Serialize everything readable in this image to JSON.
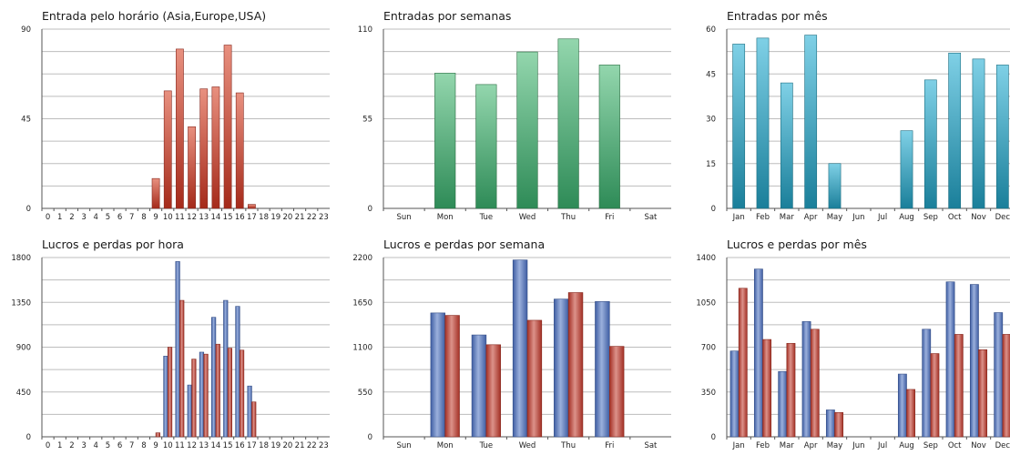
{
  "chart_data": [
    {
      "type": "bar",
      "title": "Entrada pelo horário (Asia,Europe,USA)",
      "categories": [
        "0",
        "1",
        "2",
        "3",
        "4",
        "5",
        "6",
        "7",
        "8",
        "9",
        "10",
        "11",
        "12",
        "13",
        "14",
        "15",
        "16",
        "17",
        "18",
        "19",
        "20",
        "21",
        "22",
        "23"
      ],
      "series": [
        {
          "color": "#c0392b",
          "values": [
            0,
            0,
            0,
            0,
            0,
            0,
            0,
            0,
            0,
            15,
            59,
            80,
            41,
            60,
            61,
            82,
            58,
            2,
            0,
            0,
            0,
            0,
            0,
            0
          ]
        }
      ],
      "ylim": [
        0,
        90
      ],
      "yticks": [
        "0",
        "45",
        "90"
      ],
      "grid": true,
      "gradient": [
        "#e8907f",
        "#a52a1a"
      ]
    },
    {
      "type": "bar",
      "title": "Entradas por semanas",
      "categories": [
        "Sun",
        "Mon",
        "Tue",
        "Wed",
        "Thu",
        "Fri",
        "Sat"
      ],
      "series": [
        {
          "color": "#3a9a5c",
          "values": [
            0,
            83,
            76,
            96,
            104,
            88,
            0
          ]
        }
      ],
      "ylim": [
        0,
        110
      ],
      "yticks": [
        "0",
        "55",
        "110"
      ],
      "grid": true,
      "gradient": [
        "#93d6ad",
        "#2e8b57"
      ]
    },
    {
      "type": "bar",
      "title": "Entradas por mês",
      "categories": [
        "Jan",
        "Feb",
        "Mar",
        "Apr",
        "May",
        "Jun",
        "Jul",
        "Aug",
        "Sep",
        "Oct",
        "Nov",
        "Dec"
      ],
      "series": [
        {
          "color": "#2a9db8",
          "values": [
            55,
            57,
            42,
            58,
            15,
            0,
            0,
            26,
            43,
            52,
            50,
            48
          ]
        }
      ],
      "ylim": [
        0,
        60
      ],
      "yticks": [
        "0",
        "15",
        "30",
        "45",
        "60"
      ],
      "grid": true,
      "gradient": [
        "#7fd0e6",
        "#1a7f9a"
      ]
    },
    {
      "type": "bar",
      "title": "Lucros e perdas por hora",
      "categories": [
        "0",
        "1",
        "2",
        "3",
        "4",
        "5",
        "6",
        "7",
        "8",
        "9",
        "10",
        "11",
        "12",
        "13",
        "14",
        "15",
        "16",
        "17",
        "18",
        "19",
        "20",
        "21",
        "22",
        "23"
      ],
      "series": [
        {
          "color": "#4a6fc0",
          "values": [
            0,
            0,
            0,
            0,
            0,
            0,
            0,
            0,
            0,
            0,
            810,
            1760,
            520,
            850,
            1200,
            1370,
            1310,
            510,
            0,
            0,
            0,
            0,
            0,
            0
          ]
        },
        {
          "color": "#c0392b",
          "values": [
            0,
            0,
            0,
            0,
            0,
            0,
            0,
            0,
            0,
            40,
            900,
            1370,
            780,
            830,
            930,
            890,
            870,
            350,
            0,
            0,
            0,
            0,
            0,
            0
          ]
        }
      ],
      "ylim": [
        0,
        1800
      ],
      "yticks": [
        "0",
        "450",
        "900",
        "1350",
        "1800"
      ],
      "grid": true
    },
    {
      "type": "bar",
      "title": "Lucros e perdas por semana",
      "categories": [
        "Sun",
        "Mon",
        "Tue",
        "Wed",
        "Thu",
        "Fri",
        "Sat"
      ],
      "series": [
        {
          "color": "#4a6fc0",
          "values": [
            0,
            1520,
            1250,
            2170,
            1690,
            1660,
            0
          ]
        },
        {
          "color": "#c0392b",
          "values": [
            0,
            1490,
            1130,
            1430,
            1770,
            1110,
            0
          ]
        }
      ],
      "ylim": [
        0,
        2200
      ],
      "yticks": [
        "0",
        "550",
        "1100",
        "1650",
        "2200"
      ],
      "grid": true
    },
    {
      "type": "bar",
      "title": "Lucros e perdas por mês",
      "categories": [
        "Jan",
        "Feb",
        "Mar",
        "Apr",
        "May",
        "Jun",
        "Jul",
        "Aug",
        "Sep",
        "Oct",
        "Nov",
        "Dec"
      ],
      "series": [
        {
          "color": "#4a6fc0",
          "values": [
            670,
            1310,
            510,
            900,
            210,
            0,
            0,
            490,
            840,
            1210,
            1190,
            970
          ]
        },
        {
          "color": "#c0392b",
          "values": [
            1160,
            760,
            730,
            840,
            190,
            0,
            0,
            370,
            650,
            800,
            680,
            800
          ]
        }
      ],
      "ylim": [
        0,
        1400
      ],
      "yticks": [
        "0",
        "350",
        "700",
        "1050",
        "1400"
      ],
      "grid": true
    }
  ]
}
